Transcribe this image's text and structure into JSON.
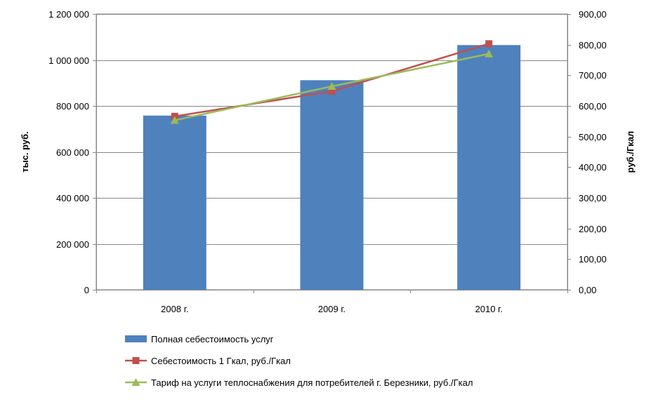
{
  "chart_data": {
    "type": "bar",
    "categories": [
      "2008 г.",
      "2009 г.",
      "2010 г."
    ],
    "series": [
      {
        "name": "Полная себестоимость услуг",
        "type": "bar",
        "axis": "left",
        "color": "#4F81BD",
        "values": [
          758000,
          912000,
          1065000
        ]
      },
      {
        "name": "Себестоимость 1 Гкал, руб./Гкал",
        "type": "line",
        "axis": "right",
        "color": "#C0504D",
        "marker": "square",
        "values": [
          566,
          648,
          803
        ]
      },
      {
        "name": "Тариф на услуги теплоснабжения для потребителей г. Березники, руб./Гкал",
        "type": "line",
        "axis": "right",
        "color": "#9BBB59",
        "marker": "triangle",
        "values": [
          553,
          664,
          770
        ]
      }
    ],
    "y_left": {
      "label": "тыс. руб.",
      "ylim": [
        0,
        1200000
      ],
      "ticks": [
        0,
        200000,
        400000,
        600000,
        800000,
        1000000,
        1200000
      ],
      "tick_labels": [
        "0",
        "200 000",
        "400 000",
        "600 000",
        "800 000",
        "1 000 000",
        "1 200 000"
      ]
    },
    "y_right": {
      "label": "руб./Гкал",
      "ylim": [
        0,
        900
      ],
      "ticks": [
        0,
        100,
        200,
        300,
        400,
        500,
        600,
        700,
        800,
        900
      ],
      "tick_labels": [
        "0,00",
        "100,00",
        "200,00",
        "300,00",
        "400,00",
        "500,00",
        "600,00",
        "700,00",
        "800,00",
        "900,00"
      ]
    },
    "gridlines": "horizontal",
    "legend_position": "bottom"
  }
}
